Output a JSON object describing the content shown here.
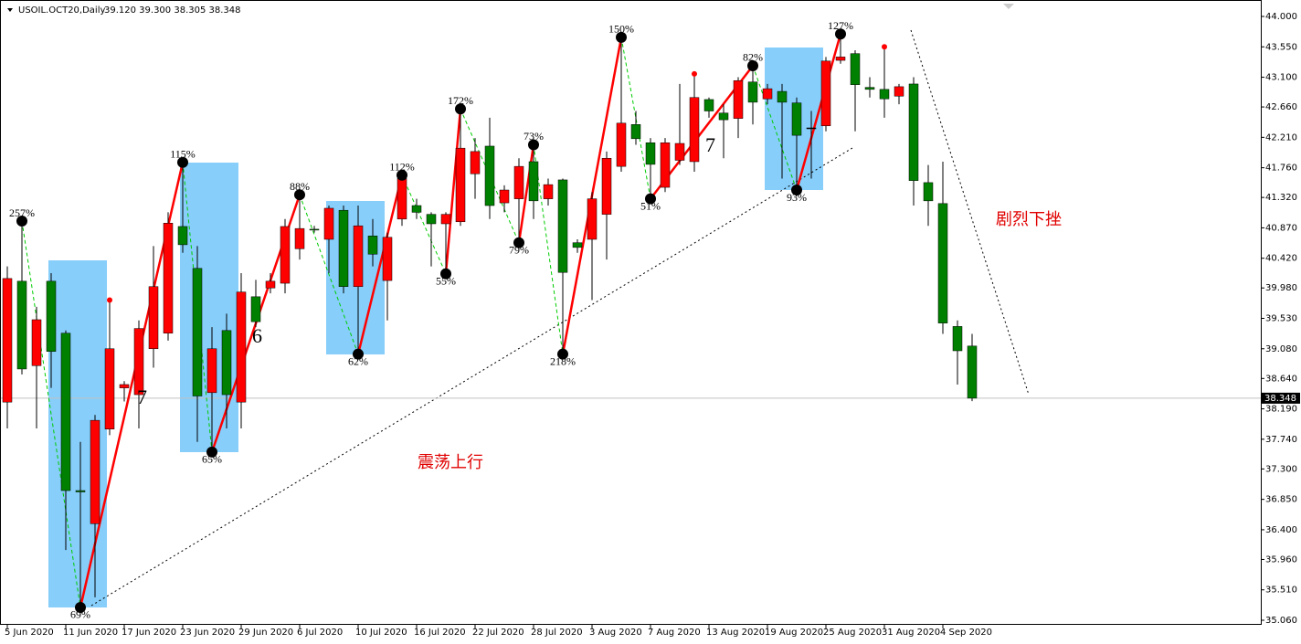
{
  "chart_data": {
    "type": "candlestick",
    "symbol": "USOIL.OCT20,Daily",
    "ohlc_text": "39.120 39.300 38.305 38.348",
    "categories": [
      "5 Jun 2020",
      null,
      null,
      null,
      "11 Jun 2020",
      null,
      null,
      null,
      "17 Jun 2020",
      null,
      null,
      null,
      "23 Jun 2020",
      null,
      null,
      null,
      "29 Jun 2020",
      null,
      null,
      null,
      "6 Jul 2020",
      null,
      null,
      null,
      "10 Jul 2020",
      null,
      null,
      null,
      "16 Jul 2020",
      null,
      null,
      null,
      "22 Jul 2020",
      null,
      null,
      null,
      "28 Jul 2020",
      null,
      null,
      null,
      "3 Aug 2020",
      null,
      null,
      null,
      "7 Aug 2020",
      null,
      null,
      null,
      "13 Aug 2020",
      null,
      null,
      null,
      "19 Aug 2020",
      null,
      null,
      null,
      "25 Aug 2020",
      null,
      null,
      null,
      "31 Aug 2020",
      null,
      null,
      null,
      "4 Sep 2020",
      null,
      null
    ],
    "open": [
      38.29,
      40.08,
      38.83,
      40.08,
      39.31,
      36.98,
      36.49,
      37.89,
      38.5,
      38.4,
      39.08,
      39.31,
      40.89,
      40.27,
      38.43,
      39.35,
      38.29,
      39.85,
      39.98,
      40.05,
      40.56,
      40.85,
      40.7,
      41.13,
      40.0,
      40.75,
      40.09,
      41.0,
      41.2,
      41.07,
      40.93,
      40.96,
      41.67,
      42.08,
      41.24,
      41.3,
      41.85,
      41.3,
      41.58,
      40.65,
      40.7,
      41.07,
      41.78,
      42.4,
      42.13,
      41.47,
      41.87,
      41.85,
      42.77,
      42.57,
      42.49,
      43.03,
      42.78,
      42.89,
      42.72,
      42.35,
      42.38,
      43.35,
      43.45,
      42.95,
      42.92,
      42.82,
      43.0,
      41.54,
      41.23,
      39.41,
      39.12
    ],
    "high": [
      40.3,
      40.97,
      39.7,
      40.2,
      39.35,
      37.7,
      38.1,
      39.8,
      38.6,
      39.5,
      40.6,
      41.1,
      41.84,
      40.6,
      39.4,
      39.6,
      40.2,
      40.1,
      40.2,
      41.0,
      41.36,
      40.9,
      41.2,
      41.2,
      41.2,
      41.0,
      40.8,
      41.65,
      41.3,
      41.1,
      41.1,
      42.63,
      42.2,
      42.5,
      41.5,
      41.9,
      42.1,
      41.6,
      41.6,
      40.7,
      41.4,
      42.0,
      43.69,
      42.6,
      42.2,
      42.2,
      43.0,
      43.15,
      42.8,
      42.7,
      43.1,
      43.27,
      43.0,
      43.0,
      42.8,
      42.6,
      43.4,
      43.74,
      43.5,
      43.1,
      43.55,
      43.0,
      43.1,
      41.8,
      41.85,
      39.5,
      39.3
    ],
    "low": [
      37.9,
      38.7,
      37.9,
      38.5,
      36.1,
      35.25,
      35.4,
      37.8,
      38.3,
      37.9,
      38.8,
      39.2,
      40.5,
      37.7,
      37.55,
      37.9,
      37.9,
      39.4,
      39.9,
      39.9,
      40.4,
      40.8,
      40.2,
      39.9,
      39.0,
      40.3,
      39.5,
      40.9,
      41.0,
      40.3,
      40.19,
      40.9,
      41.3,
      41.0,
      41.1,
      40.65,
      41.0,
      41.2,
      39.0,
      40.5,
      39.8,
      40.4,
      41.7,
      42.1,
      41.3,
      41.4,
      41.8,
      41.7,
      42.5,
      41.9,
      42.2,
      42.4,
      42.7,
      41.6,
      41.43,
      41.6,
      42.3,
      43.3,
      42.3,
      42.8,
      42.5,
      42.7,
      41.2,
      40.9,
      39.3,
      38.55,
      38.305
    ],
    "close": [
      40.12,
      38.78,
      39.51,
      39.04,
      36.98,
      36.96,
      38.02,
      39.08,
      38.55,
      39.38,
      40.0,
      40.94,
      40.62,
      38.38,
      39.08,
      38.4,
      39.92,
      39.48,
      40.08,
      40.89,
      40.86,
      40.84,
      41.16,
      40.0,
      40.9,
      40.48,
      40.73,
      41.6,
      41.1,
      40.93,
      41.07,
      42.05,
      42.0,
      41.2,
      41.43,
      41.78,
      41.27,
      41.51,
      40.21,
      40.58,
      41.3,
      41.9,
      42.42,
      42.19,
      41.81,
      42.13,
      42.12,
      42.8,
      42.6,
      42.47,
      43.05,
      42.73,
      42.93,
      42.73,
      42.24,
      42.35,
      43.34,
      43.4,
      42.99,
      42.92,
      42.78,
      42.96,
      41.57,
      41.27,
      39.46,
      39.05,
      38.348
    ],
    "up_color": "#ff0000",
    "down_color": "#008000",
    "last_price": 38.348,
    "ylim": [
      35.06,
      44.0
    ],
    "yticks": [
      {
        "value": 35.06,
        "label": "35.060"
      },
      {
        "value": 35.51,
        "label": "35.510"
      },
      {
        "value": 35.96,
        "label": "35.960"
      },
      {
        "value": 36.4,
        "label": "36.400"
      },
      {
        "value": 36.85,
        "label": "36.850"
      },
      {
        "value": 37.3,
        "label": "37.300"
      },
      {
        "value": 37.74,
        "label": "37.740"
      },
      {
        "value": 38.19,
        "label": "38.190"
      },
      {
        "value": 38.64,
        "label": "38.640"
      },
      {
        "value": 39.08,
        "label": "39.080"
      },
      {
        "value": 39.53,
        "label": "39.530"
      },
      {
        "value": 39.98,
        "label": "39.980"
      },
      {
        "value": 40.42,
        "label": "40.420"
      },
      {
        "value": 40.87,
        "label": "40.870"
      },
      {
        "value": 41.32,
        "label": "41.320"
      },
      {
        "value": 41.76,
        "label": "41.760"
      },
      {
        "value": 42.21,
        "label": "42.210"
      },
      {
        "value": 42.66,
        "label": "42.660"
      },
      {
        "value": 43.1,
        "label": "43.100"
      },
      {
        "value": 43.55,
        "label": "43.550"
      },
      {
        "value": 44.0,
        "label": "44.000"
      }
    ],
    "pivots": [
      {
        "bar": 1,
        "price": 40.97,
        "label": "257%"
      },
      {
        "bar": 5,
        "price": 35.25,
        "label": "69%"
      },
      {
        "bar": 12,
        "price": 41.84,
        "label": "115%"
      },
      {
        "bar": 14,
        "price": 37.55,
        "label": "65%"
      },
      {
        "bar": 20,
        "price": 41.36,
        "label": "88%"
      },
      {
        "bar": 24,
        "price": 39.0,
        "label": "62%"
      },
      {
        "bar": 27,
        "price": 41.65,
        "label": "112%"
      },
      {
        "bar": 30,
        "price": 40.19,
        "label": "55%"
      },
      {
        "bar": 31,
        "price": 42.63,
        "label": "172%"
      },
      {
        "bar": 35,
        "price": 40.65,
        "label": "79%"
      },
      {
        "bar": 36,
        "price": 42.1,
        "label": "73%"
      },
      {
        "bar": 38,
        "price": 39.0,
        "label": "218%"
      },
      {
        "bar": 42,
        "price": 43.69,
        "label": "150%"
      },
      {
        "bar": 44,
        "price": 41.3,
        "label": "51%"
      },
      {
        "bar": 51,
        "price": 43.27,
        "label": "82%"
      },
      {
        "bar": 54,
        "price": 41.43,
        "label": "93%"
      },
      {
        "bar": 57,
        "price": 43.74,
        "label": "127%"
      }
    ],
    "dots": [
      {
        "bar": 7,
        "price": 39.8
      },
      {
        "bar": 47,
        "price": 43.15
      },
      {
        "bar": 60,
        "price": 43.55
      }
    ],
    "wave_labels": [
      "7",
      "6",
      "7"
    ],
    "annotations": [
      "震荡上行",
      "剧烈下挫"
    ]
  }
}
